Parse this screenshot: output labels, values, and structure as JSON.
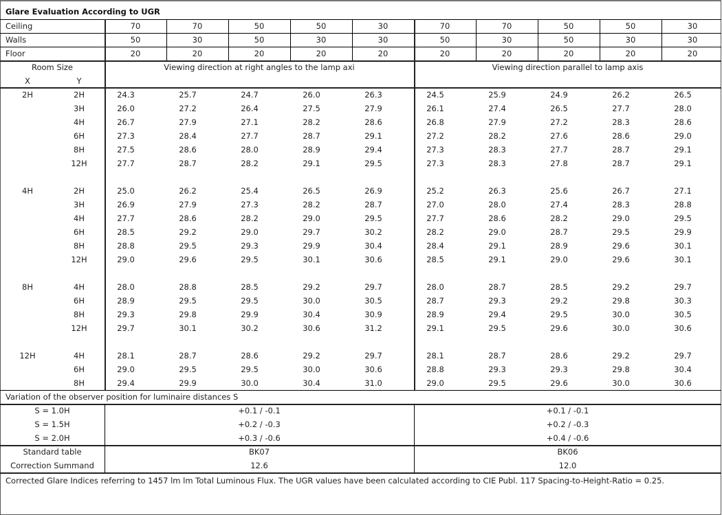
{
  "title": "Glare Evaluation According to UGR",
  "reflectance": [
    {
      "label": "Ceiling",
      "values": [
        "70",
        "70",
        "50",
        "50",
        "30",
        "70",
        "70",
        "50",
        "50",
        "30"
      ]
    },
    {
      "label": "Walls",
      "values": [
        "50",
        "30",
        "50",
        "30",
        "30",
        "50",
        "30",
        "50",
        "30",
        "30"
      ]
    },
    {
      "label": "Floor",
      "values": [
        "20",
        "20",
        "20",
        "20",
        "20",
        "20",
        "20",
        "20",
        "20",
        "20"
      ]
    }
  ],
  "room_size_label": "Room Size",
  "x_label": "X",
  "y_label": "Y",
  "direction_headers": [
    "Viewing direction at right angles to the lamp axi",
    "Viewing direction parallel to lamp axis"
  ],
  "groups": [
    {
      "x": "2H",
      "rows": [
        {
          "y": "2H",
          "perpendicular": [
            "24.3",
            "25.7",
            "24.7",
            "26.0",
            "26.3"
          ],
          "parallel": [
            "24.5",
            "25.9",
            "24.9",
            "26.2",
            "26.5"
          ]
        },
        {
          "y": "3H",
          "perpendicular": [
            "26.0",
            "27.2",
            "26.4",
            "27.5",
            "27.9"
          ],
          "parallel": [
            "26.1",
            "27.4",
            "26.5",
            "27.7",
            "28.0"
          ]
        },
        {
          "y": "4H",
          "perpendicular": [
            "26.7",
            "27.9",
            "27.1",
            "28.2",
            "28.6"
          ],
          "parallel": [
            "26.8",
            "27.9",
            "27.2",
            "28.3",
            "28.6"
          ]
        },
        {
          "y": "6H",
          "perpendicular": [
            "27.3",
            "28.4",
            "27.7",
            "28.7",
            "29.1"
          ],
          "parallel": [
            "27.2",
            "28.2",
            "27.6",
            "28.6",
            "29.0"
          ]
        },
        {
          "y": "8H",
          "perpendicular": [
            "27.5",
            "28.6",
            "28.0",
            "28.9",
            "29.4"
          ],
          "parallel": [
            "27.3",
            "28.3",
            "27.7",
            "28.7",
            "29.1"
          ]
        },
        {
          "y": "12H",
          "perpendicular": [
            "27.7",
            "28.7",
            "28.2",
            "29.1",
            "29.5"
          ],
          "parallel": [
            "27.3",
            "28.3",
            "27.8",
            "28.7",
            "29.1"
          ]
        }
      ]
    },
    {
      "x": "4H",
      "rows": [
        {
          "y": "2H",
          "perpendicular": [
            "25.0",
            "26.2",
            "25.4",
            "26.5",
            "26.9"
          ],
          "parallel": [
            "25.2",
            "26.3",
            "25.6",
            "26.7",
            "27.1"
          ]
        },
        {
          "y": "3H",
          "perpendicular": [
            "26.9",
            "27.9",
            "27.3",
            "28.2",
            "28.7"
          ],
          "parallel": [
            "27.0",
            "28.0",
            "27.4",
            "28.3",
            "28.8"
          ]
        },
        {
          "y": "4H",
          "perpendicular": [
            "27.7",
            "28.6",
            "28.2",
            "29.0",
            "29.5"
          ],
          "parallel": [
            "27.7",
            "28.6",
            "28.2",
            "29.0",
            "29.5"
          ]
        },
        {
          "y": "6H",
          "perpendicular": [
            "28.5",
            "29.2",
            "29.0",
            "29.7",
            "30.2"
          ],
          "parallel": [
            "28.2",
            "29.0",
            "28.7",
            "29.5",
            "29.9"
          ]
        },
        {
          "y": "8H",
          "perpendicular": [
            "28.8",
            "29.5",
            "29.3",
            "29.9",
            "30.4"
          ],
          "parallel": [
            "28.4",
            "29.1",
            "28.9",
            "29.6",
            "30.1"
          ]
        },
        {
          "y": "12H",
          "perpendicular": [
            "29.0",
            "29.6",
            "29.5",
            "30.1",
            "30.6"
          ],
          "parallel": [
            "28.5",
            "29.1",
            "29.0",
            "29.6",
            "30.1"
          ]
        }
      ]
    },
    {
      "x": "8H",
      "rows": [
        {
          "y": "4H",
          "perpendicular": [
            "28.0",
            "28.8",
            "28.5",
            "29.2",
            "29.7"
          ],
          "parallel": [
            "28.0",
            "28.7",
            "28.5",
            "29.2",
            "29.7"
          ]
        },
        {
          "y": "6H",
          "perpendicular": [
            "28.9",
            "29.5",
            "29.5",
            "30.0",
            "30.5"
          ],
          "parallel": [
            "28.7",
            "29.3",
            "29.2",
            "29.8",
            "30.3"
          ]
        },
        {
          "y": "8H",
          "perpendicular": [
            "29.3",
            "29.8",
            "29.9",
            "30.4",
            "30.9"
          ],
          "parallel": [
            "28.9",
            "29.4",
            "29.5",
            "30.0",
            "30.5"
          ]
        },
        {
          "y": "12H",
          "perpendicular": [
            "29.7",
            "30.1",
            "30.2",
            "30.6",
            "31.2"
          ],
          "parallel": [
            "29.1",
            "29.5",
            "29.6",
            "30.0",
            "30.6"
          ]
        }
      ]
    },
    {
      "x": "12H",
      "rows": [
        {
          "y": "4H",
          "perpendicular": [
            "28.1",
            "28.7",
            "28.6",
            "29.2",
            "29.7"
          ],
          "parallel": [
            "28.1",
            "28.7",
            "28.6",
            "29.2",
            "29.7"
          ]
        },
        {
          "y": "6H",
          "perpendicular": [
            "29.0",
            "29.5",
            "29.5",
            "30.0",
            "30.6"
          ],
          "parallel": [
            "28.8",
            "29.3",
            "29.3",
            "29.8",
            "30.4"
          ]
        },
        {
          "y": "8H",
          "perpendicular": [
            "29.4",
            "29.9",
            "30.0",
            "30.4",
            "31.0"
          ],
          "parallel": [
            "29.0",
            "29.5",
            "29.6",
            "30.0",
            "30.6"
          ]
        }
      ]
    }
  ],
  "variation": {
    "title": "Variation of the observer position for luminaire distances S",
    "rows": [
      {
        "label": "S = 1.0H",
        "perpendicular": "+0.1 / -0.1",
        "parallel": "+0.1 / -0.1"
      },
      {
        "label": "S = 1.5H",
        "perpendicular": "+0.2 / -0.3",
        "parallel": "+0.2 / -0.3"
      },
      {
        "label": "S = 2.0H",
        "perpendicular": "+0.3 / -0.6",
        "parallel": "+0.4 / -0.6"
      }
    ]
  },
  "standard_table": {
    "label": "Standard table",
    "perpendicular": "BK07",
    "parallel": "BK06"
  },
  "correction_summand": {
    "label": "Correction Summand",
    "perpendicular": "12.6",
    "parallel": "12.0"
  },
  "footer": "Corrected Glare Indices referring to 1457 lm lm Total Luminous Flux. The UGR values have been calculated according to CIE Publ. 117    Spacing-to-Height-Ratio = 0.25."
}
